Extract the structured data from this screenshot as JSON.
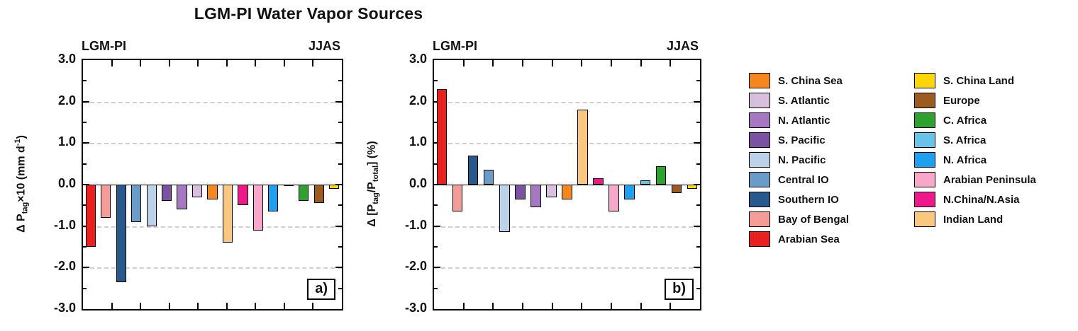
{
  "title": "LGM-PI Water Vapor Sources",
  "panels": [
    {
      "id": "a",
      "label": "a)",
      "header_left": "LGM-PI",
      "header_right": "JJAS",
      "ylabel": {
        "p1": "Δ P",
        "s1": "tag",
        "p2": "×10 (mm d",
        "sup1": "-1",
        "p3": ")"
      }
    },
    {
      "id": "b",
      "label": "b)",
      "header_left": "LGM-PI",
      "header_right": "JJAS",
      "ylabel": {
        "p1": "Δ [P",
        "s1": "tag",
        "p2": "/P",
        "s2": "total",
        "p3": "] (%)"
      }
    }
  ],
  "axis": {
    "yticks": [
      {
        "v": 3,
        "label": "3.0"
      },
      {
        "v": 2,
        "label": "2.0"
      },
      {
        "v": 1,
        "label": "1.0"
      },
      {
        "v": 0,
        "label": "0.0"
      },
      {
        "v": -1,
        "label": "-1.0"
      },
      {
        "v": -2,
        "label": "-2.0"
      },
      {
        "v": -3,
        "label": "-3.0"
      }
    ]
  },
  "palette": {
    "S. China Sea": "#F6871F",
    "S. Atlantic": "#D7BFDD",
    "N. Atlantic": "#A678C2",
    "S. Pacific": "#7A52A1",
    "N. Pacific": "#BCD2E8",
    "Central IO": "#6B9BC9",
    "Southern IO": "#28598C",
    "Bay of Bengal": "#F59C98",
    "Arabian Sea": "#E8201E",
    "S. China Land": "#FFD60A",
    "Europe": "#9C5B20",
    "C. Africa": "#2FA12F",
    "S. Africa": "#67C4E8",
    "N. Africa": "#1FA0EF",
    "Arabian Peninsula": "#F7A8CA",
    "N.China/N.Asia": "#EE1A8C",
    "Indian Land": "#F9C77F"
  },
  "legends": [
    {
      "id": "ocean",
      "items": [
        "S. China Sea",
        "S. Atlantic",
        "N. Atlantic",
        "S. Pacific",
        "N. Pacific",
        "Central IO",
        "Southern IO",
        "Bay of Bengal",
        "Arabian Sea"
      ]
    },
    {
      "id": "land",
      "items": [
        "S. China Land",
        "Europe",
        "C. Africa",
        "S. Africa",
        "N. Africa",
        "Arabian Peninsula",
        "N.China/N.Asia",
        "Indian Land"
      ]
    }
  ],
  "chart_data": [
    {
      "type": "bar",
      "panel": "a",
      "title": "LGM-PI Water Vapor Sources",
      "season": "JJAS",
      "ylabel": "Δ P_tag ×10 (mm d^-1)",
      "ylim": [
        -3,
        3
      ],
      "grid": "dashed horizontal at integer ticks",
      "categories": [
        "Arabian Sea",
        "Bay of Bengal",
        "Southern IO",
        "Central IO",
        "N. Pacific",
        "S. Pacific",
        "N. Atlantic",
        "S. Atlantic",
        "S. China Sea",
        "Indian Land",
        "N.China/N.Asia",
        "Arabian Peninsula",
        "N. Africa",
        "S. Africa",
        "C. Africa",
        "Europe",
        "S. China Land"
      ],
      "values": [
        -1.5,
        -0.8,
        -2.35,
        -0.9,
        -1.0,
        -0.4,
        -0.6,
        -0.3,
        -0.35,
        -1.4,
        -0.5,
        -1.1,
        -0.65,
        -0.02,
        -0.4,
        -0.45,
        -0.1
      ]
    },
    {
      "type": "bar",
      "panel": "b",
      "title": "LGM-PI Water Vapor Sources",
      "season": "JJAS",
      "ylabel": "Δ [P_tag/P_total] (%)",
      "ylim": [
        -3,
        3
      ],
      "grid": "dashed horizontal at integer ticks",
      "categories": [
        "Arabian Sea",
        "Bay of Bengal",
        "Southern IO",
        "Central IO",
        "N. Pacific",
        "S. Pacific",
        "N. Atlantic",
        "S. Atlantic",
        "S. China Sea",
        "Indian Land",
        "N.China/N.Asia",
        "Arabian Peninsula",
        "N. Africa",
        "S. Africa",
        "C. Africa",
        "Europe",
        "S. China Land"
      ],
      "values": [
        2.3,
        -0.65,
        0.7,
        0.35,
        -1.15,
        -0.35,
        -0.55,
        -0.3,
        -0.35,
        1.8,
        0.15,
        -0.65,
        -0.35,
        0.1,
        0.45,
        -0.2,
        -0.1
      ]
    }
  ]
}
